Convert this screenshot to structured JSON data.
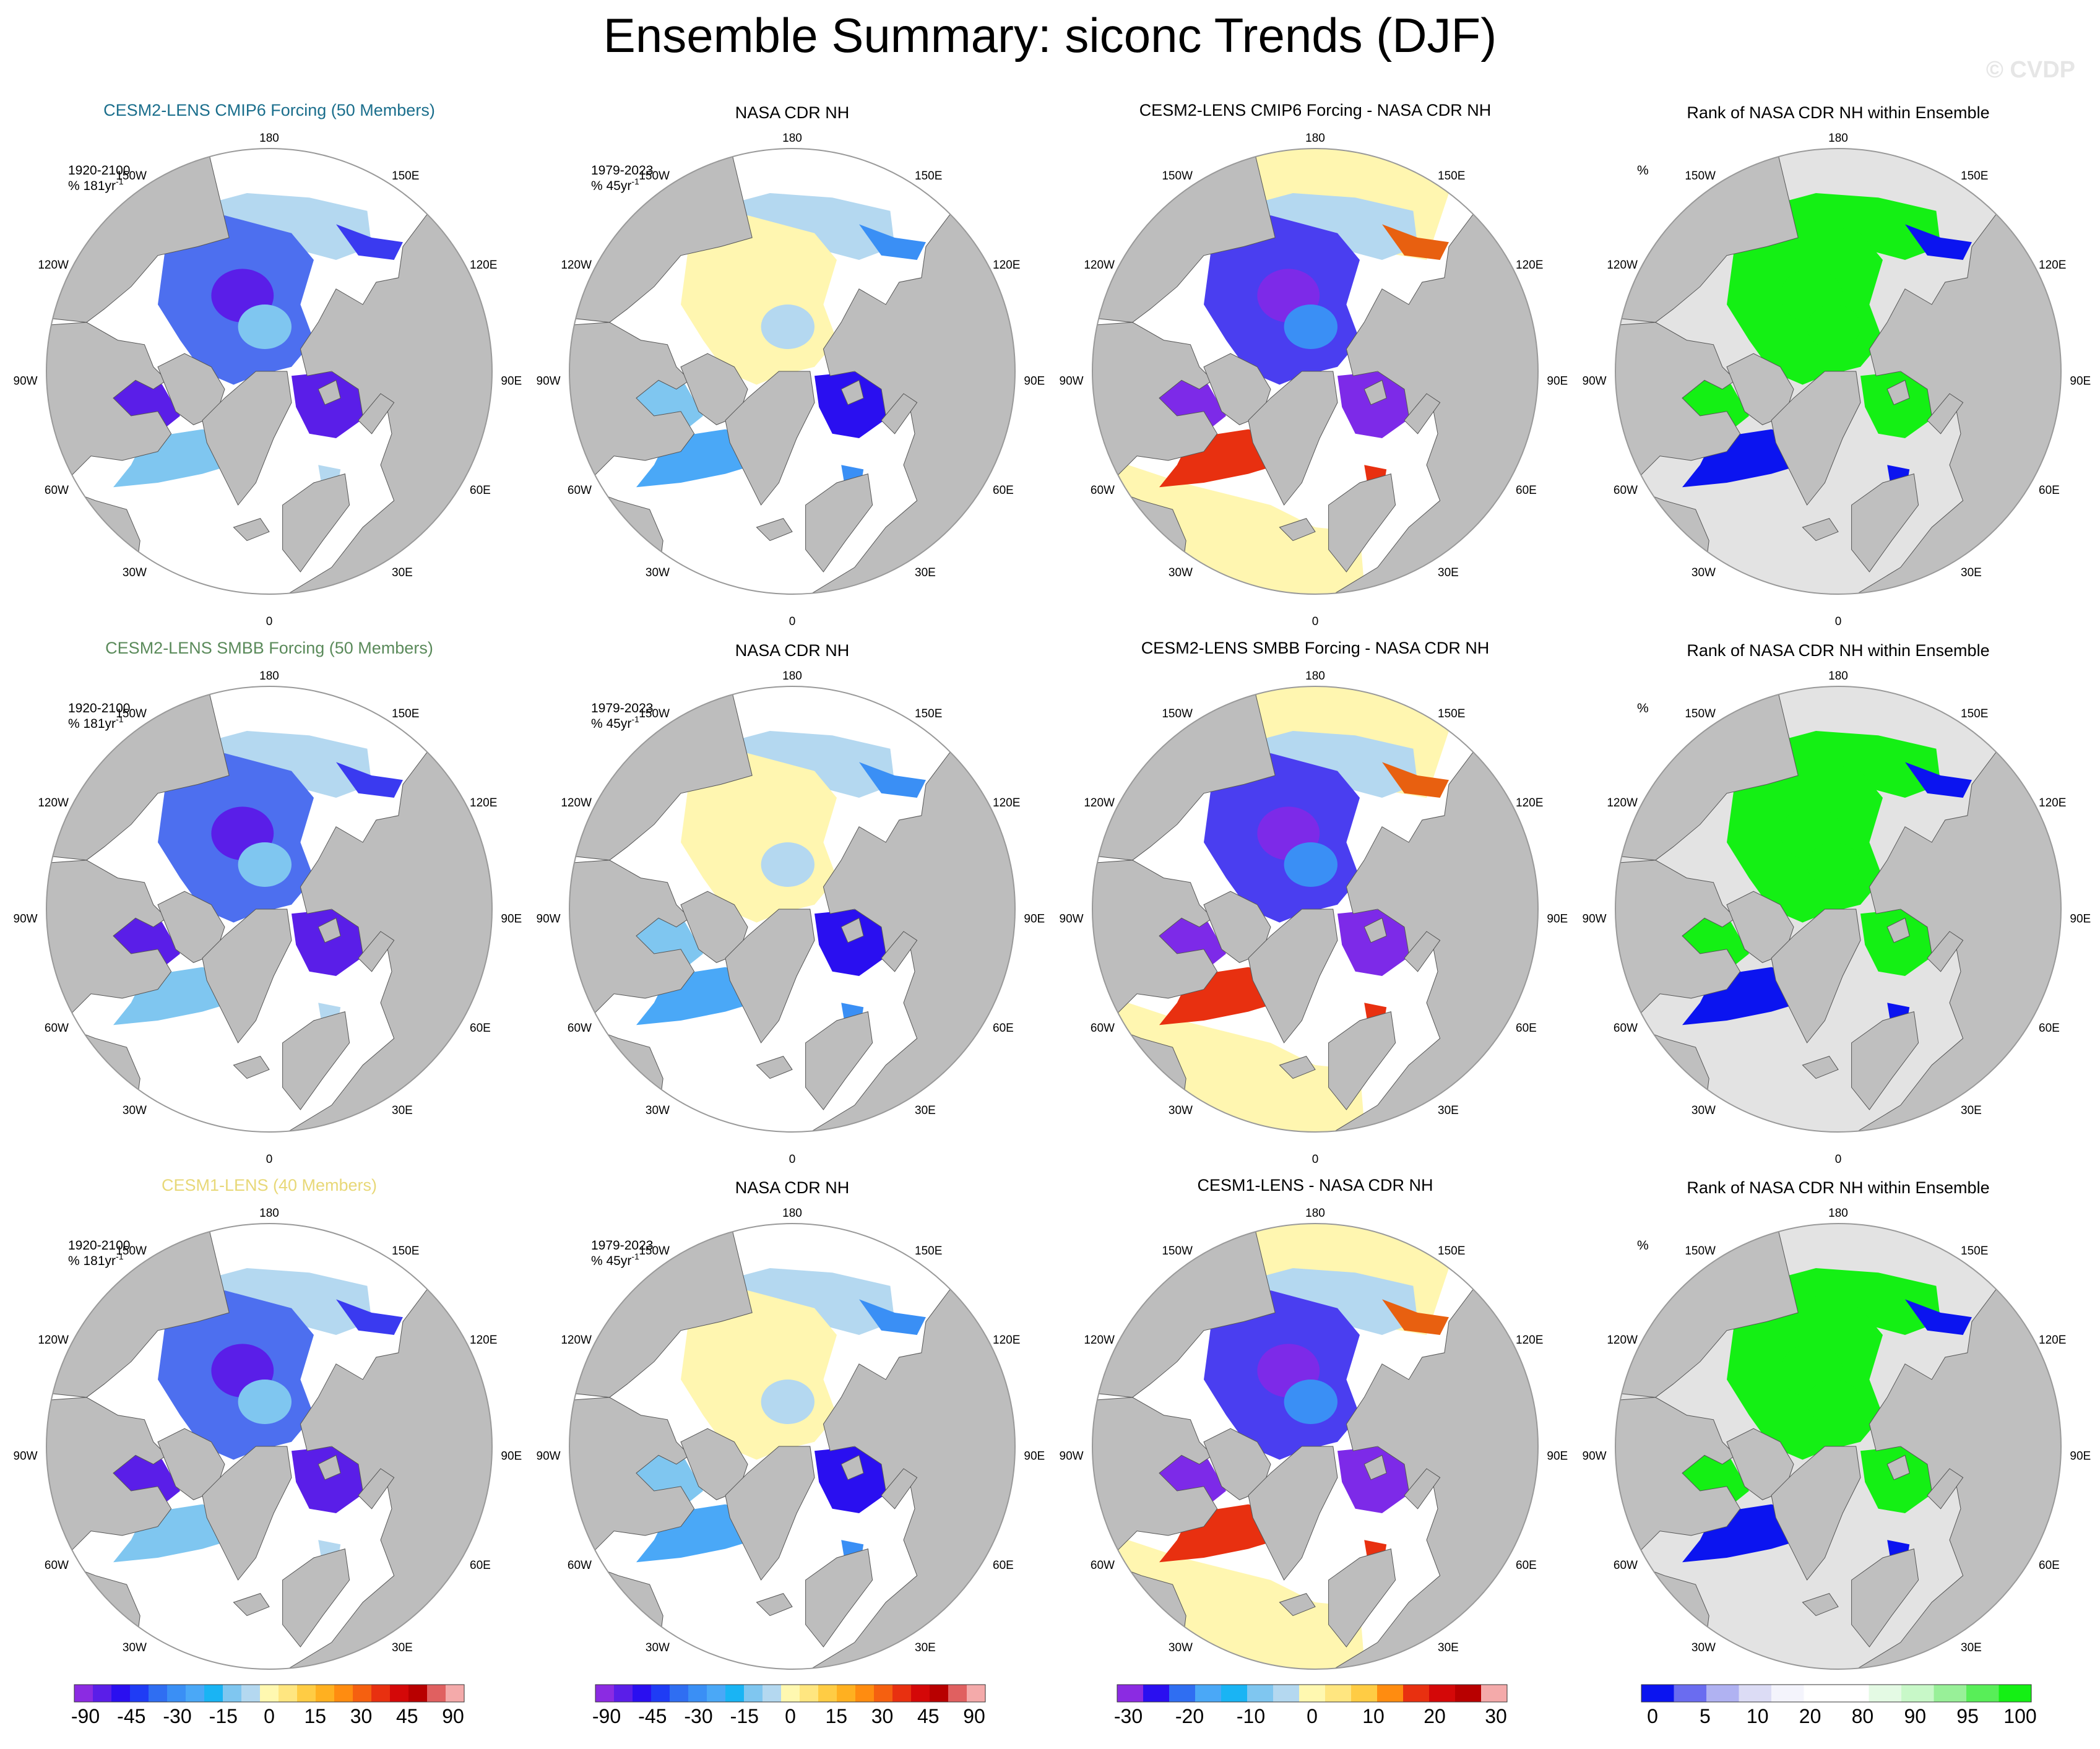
{
  "title": "Ensemble Summary: siconc Trends (DJF)",
  "watermark": "© CVDP",
  "colors": {
    "land": "#bdbdbd",
    "rank_land": "#bfbfbf",
    "rank_ocean_bg": "#e3e3e3",
    "model_title_1": "#1a6e8c",
    "model_title_2": "#5a8a5a",
    "model_title_3": "#e8d878"
  },
  "longitude_labels": {
    "top": "180",
    "bottom": "0",
    "upper_left": "150W",
    "upper_right": "150E",
    "left_high": "120W",
    "right_high": "120E",
    "left_mid": "90W",
    "right_mid": "90E",
    "left_low": "60W",
    "right_low": "60E",
    "lower_left": "30W",
    "lower_right": "30E"
  },
  "rows": [
    {
      "panels": [
        {
          "title": "CESM2-LENS CMIP6 Forcing (50 Members)",
          "kind": "model",
          "note1": "1920-2100",
          "note2": "% 181yr",
          "note_sup": "-1"
        },
        {
          "title": "NASA CDR NH",
          "kind": "obs",
          "note1": "1979-2023",
          "note2": "% 45yr",
          "note_sup": "-1"
        },
        {
          "title": "CESM2-LENS CMIP6 Forcing - NASA CDR NH",
          "kind": "diff"
        },
        {
          "title": "Rank of NASA CDR NH within Ensemble",
          "kind": "rank",
          "note1": "%"
        }
      ]
    },
    {
      "panels": [
        {
          "title": "CESM2-LENS SMBB Forcing (50 Members)",
          "kind": "model",
          "note1": "1920-2100",
          "note2": "% 181yr",
          "note_sup": "-1"
        },
        {
          "title": "NASA CDR NH",
          "kind": "obs",
          "note1": "1979-2023",
          "note2": "% 45yr",
          "note_sup": "-1"
        },
        {
          "title": "CESM2-LENS SMBB Forcing - NASA CDR NH",
          "kind": "diff"
        },
        {
          "title": "Rank of NASA CDR NH within Ensemble",
          "kind": "rank",
          "note1": "%"
        }
      ]
    },
    {
      "panels": [
        {
          "title": "CESM1-LENS (40 Members)",
          "kind": "model",
          "note1": "1920-2100",
          "note2": "% 181yr",
          "note_sup": "-1"
        },
        {
          "title": "NASA CDR NH",
          "kind": "obs",
          "note1": "1979-2023",
          "note2": "% 45yr",
          "note_sup": "-1"
        },
        {
          "title": "CESM1-LENS - NASA CDR NH",
          "kind": "diff"
        },
        {
          "title": "Rank of NASA CDR NH within Ensemble",
          "kind": "rank",
          "note1": "%"
        }
      ]
    }
  ],
  "colorbars": [
    {
      "name": "trend",
      "colors": [
        "#8b2be2",
        "#5a1ee8",
        "#2a0ff0",
        "#1f3cf5",
        "#2f6ef2",
        "#3a8ff5",
        "#4aa8f7",
        "#19b4f4",
        "#7fc6f0",
        "#b4d8f0",
        "#fff8b0",
        "#ffe680",
        "#ffcc44",
        "#ffb020",
        "#ff8c10",
        "#f56010",
        "#e83010",
        "#d40808",
        "#b80000",
        "#e06060",
        "#f4aaaa"
      ],
      "labels": [
        "-90",
        "-45",
        "-30",
        "-15",
        "0",
        "15",
        "30",
        "45",
        "90"
      ]
    },
    {
      "name": "trend-obs",
      "colors": [
        "#8b2be2",
        "#5a1ee8",
        "#2a0ff0",
        "#1f3cf5",
        "#2f6ef2",
        "#3a8ff5",
        "#4aa8f7",
        "#19b4f4",
        "#7fc6f0",
        "#b4d8f0",
        "#fff8b0",
        "#ffe680",
        "#ffcc44",
        "#ffb020",
        "#ff8c10",
        "#f56010",
        "#e83010",
        "#d40808",
        "#b80000",
        "#e06060",
        "#f4aaaa"
      ],
      "labels": [
        "-90",
        "-45",
        "-30",
        "-15",
        "0",
        "15",
        "30",
        "45",
        "90"
      ]
    },
    {
      "name": "difference",
      "colors": [
        "#8b2be2",
        "#2a0ff0",
        "#2f6ef2",
        "#4aa8f7",
        "#19b4f4",
        "#7fc6f0",
        "#b4d8f0",
        "#fff8b0",
        "#ffe680",
        "#ffcc44",
        "#ff8c10",
        "#e83010",
        "#d40808",
        "#b80000",
        "#f4aaaa"
      ],
      "labels": [
        "-30",
        "-20",
        "-10",
        "0",
        "10",
        "20",
        "30"
      ]
    },
    {
      "name": "rank",
      "colors": [
        "#0b14f0",
        "#6a6cf0",
        "#b0b2f2",
        "#dcdcf5",
        "#f4f4fc",
        "#ffffff",
        "#ffffff",
        "#e4fae4",
        "#c8f8c8",
        "#98f098",
        "#58ee58",
        "#14f014"
      ],
      "labels": [
        "0",
        "5",
        "10",
        "20",
        "80",
        "90",
        "95",
        "100"
      ]
    }
  ]
}
